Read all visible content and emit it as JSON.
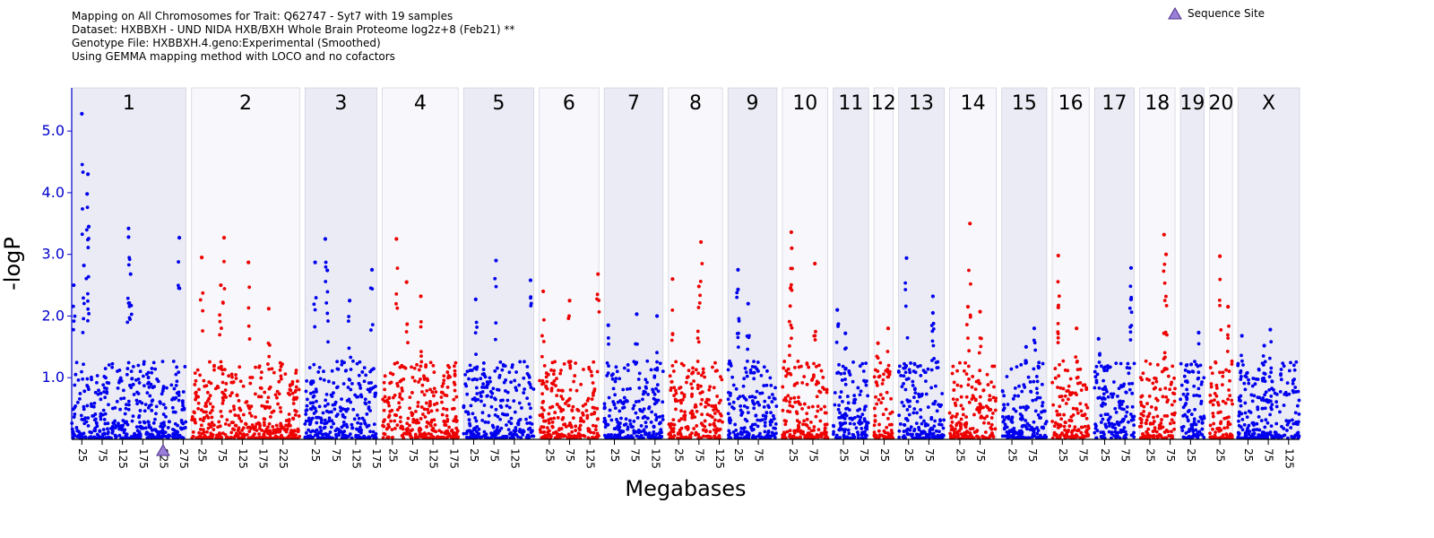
{
  "header": {
    "line1": "Mapping on All Chromosomes for Trait: Q62747 - Syt7 with 19 samples",
    "line2": "Dataset: HXBBXH - UND NIDA HXB/BXH Whole Brain Proteome log2z+8 (Feb21) **",
    "line3": "Genotype File: HXBBXH.4.geno:Experimental (Smoothed)",
    "line4": "Using GEMMA mapping method with LOCO and no cofactors"
  },
  "legend": {
    "label": "Sequence Site",
    "color": "#9a7fd8"
  },
  "chart_data": {
    "type": "scatter",
    "xlabel": "Megabases",
    "ylabel": "-logP",
    "ylim": [
      0,
      5.7
    ],
    "yticks": [
      1.0,
      2.0,
      3.0,
      4.0,
      5.0
    ],
    "ytick_labels": [
      "1.0",
      "2.0",
      "3.0",
      "4.0",
      "5.0"
    ],
    "colors": {
      "odd": "#0000ee",
      "even": "#ee0000",
      "band": "#ebebf5",
      "band_alt": "#f7f7fc"
    },
    "sequence_site": {
      "chromosome": "1",
      "mb": 225
    },
    "chromosomes": [
      {
        "name": "1",
        "length": 282,
        "ticks": [
          25,
          75,
          125,
          175,
          225,
          275
        ],
        "peaks": [
          [
            25,
            5.28
          ],
          [
            40,
            4.3
          ],
          [
            38,
            3.98
          ],
          [
            42,
            3.45
          ],
          [
            30,
            2.82
          ],
          [
            140,
            3.42
          ],
          [
            140,
            3.28
          ],
          [
            145,
            2.68
          ],
          [
            265,
            3.27
          ],
          [
            5,
            2.5
          ]
        ]
      },
      {
        "name": "2",
        "length": 266,
        "ticks": [
          25,
          75,
          125,
          175,
          225
        ],
        "peaks": [
          [
            25,
            2.95
          ],
          [
            80,
            3.27
          ],
          [
            140,
            2.87
          ],
          [
            72,
            2.5
          ],
          [
            190,
            2.12
          ]
        ]
      },
      {
        "name": "3",
        "length": 177,
        "ticks": [
          25,
          75,
          125,
          175
        ],
        "peaks": [
          [
            50,
            3.25
          ],
          [
            25,
            2.87
          ],
          [
            55,
            2.74
          ],
          [
            165,
            2.75
          ],
          [
            110,
            2.25
          ]
        ]
      },
      {
        "name": "4",
        "length": 187,
        "ticks": [
          25,
          75,
          125,
          175
        ],
        "peaks": [
          [
            35,
            3.25
          ],
          [
            60,
            2.55
          ],
          [
            95,
            2.32
          ]
        ]
      },
      {
        "name": "5",
        "length": 173,
        "ticks": [
          25,
          75,
          125
        ],
        "peaks": [
          [
            80,
            2.9
          ],
          [
            165,
            2.58
          ],
          [
            30,
            2.27
          ]
        ]
      },
      {
        "name": "6",
        "length": 147,
        "ticks": [
          25,
          75,
          125
        ],
        "peaks": [
          [
            10,
            2.4
          ],
          [
            145,
            2.68
          ],
          [
            75,
            2.25
          ]
        ]
      },
      {
        "name": "7",
        "length": 145,
        "ticks": [
          25,
          75,
          125
        ],
        "peaks": [
          [
            80,
            2.03
          ],
          [
            10,
            1.85
          ],
          [
            130,
            2.0
          ]
        ]
      },
      {
        "name": "8",
        "length": 133,
        "ticks": [
          25,
          75,
          125
        ],
        "peaks": [
          [
            80,
            3.2
          ],
          [
            10,
            2.6
          ],
          [
            75,
            2.48
          ]
        ]
      },
      {
        "name": "9",
        "length": 121,
        "ticks": [
          25,
          75
        ],
        "peaks": [
          [
            25,
            2.75
          ],
          [
            25,
            2.43
          ],
          [
            50,
            2.2
          ]
        ]
      },
      {
        "name": "10",
        "length": 112,
        "ticks": [
          25,
          75
        ],
        "peaks": [
          [
            22,
            3.36
          ],
          [
            23,
            3.1
          ],
          [
            80,
            2.85
          ],
          [
            20,
            2.45
          ]
        ]
      },
      {
        "name": "11",
        "length": 87,
        "ticks": [
          25,
          75
        ],
        "peaks": [
          [
            10,
            2.1
          ],
          [
            30,
            1.72
          ]
        ]
      },
      {
        "name": "12",
        "length": 47,
        "ticks": [
          25
        ],
        "peaks": [
          [
            35,
            1.8
          ],
          [
            10,
            1.56
          ]
        ]
      },
      {
        "name": "13",
        "length": 113,
        "ticks": [
          25,
          75
        ],
        "peaks": [
          [
            20,
            2.94
          ],
          [
            85,
            2.32
          ],
          [
            85,
            2.05
          ]
        ]
      },
      {
        "name": "14",
        "length": 115,
        "ticks": [
          25,
          75
        ],
        "peaks": [
          [
            50,
            3.5
          ],
          [
            45,
            2.15
          ],
          [
            75,
            2.07
          ]
        ]
      },
      {
        "name": "15",
        "length": 111,
        "ticks": [
          25,
          75
        ],
        "peaks": [
          [
            80,
            1.8
          ],
          [
            60,
            1.5
          ]
        ]
      },
      {
        "name": "16",
        "length": 91,
        "ticks": [
          25,
          75
        ],
        "peaks": [
          [
            15,
            2.98
          ],
          [
            15,
            2.14
          ],
          [
            60,
            1.8
          ]
        ]
      },
      {
        "name": "17",
        "length": 98,
        "ticks": [
          25,
          75
        ],
        "peaks": [
          [
            90,
            2.78
          ],
          [
            90,
            2.27
          ],
          [
            10,
            1.63
          ]
        ]
      },
      {
        "name": "18",
        "length": 87,
        "ticks": [
          25,
          75
        ],
        "peaks": [
          [
            60,
            3.32
          ],
          [
            65,
            3.0
          ],
          [
            60,
            1.72
          ]
        ]
      },
      {
        "name": "19",
        "length": 59,
        "ticks": [
          25
        ],
        "peaks": [
          [
            45,
            1.73
          ],
          [
            15,
            1.2
          ]
        ]
      },
      {
        "name": "20",
        "length": 56,
        "ticks": [
          25
        ],
        "peaks": [
          [
            25,
            2.97
          ],
          [
            45,
            2.15
          ]
        ]
      },
      {
        "name": "X",
        "length": 152,
        "ticks": [
          25,
          75,
          125
        ],
        "peaks": [
          [
            10,
            1.68
          ],
          [
            80,
            1.78
          ],
          [
            65,
            1.52
          ]
        ]
      }
    ]
  }
}
